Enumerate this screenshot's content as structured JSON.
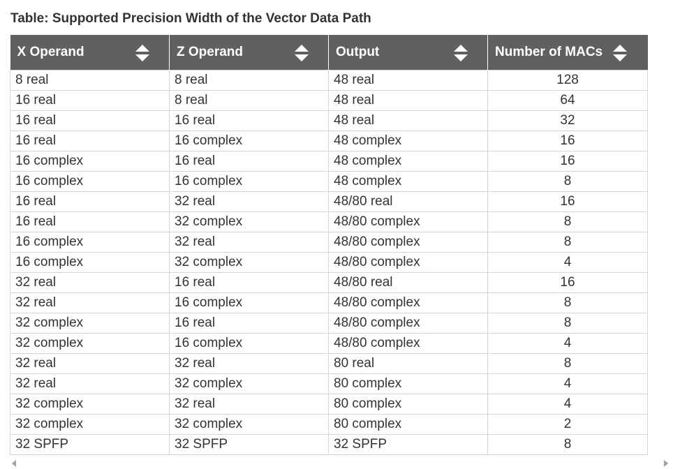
{
  "caption": "Table: Supported Precision Width of the Vector Data Path",
  "table": {
    "headers": [
      "X Operand",
      "Z Operand",
      "Output",
      "Number of MACs"
    ],
    "sort_icon": "sort-up-down-icon",
    "rows": [
      [
        "8 real",
        "8 real",
        "48 real",
        "128"
      ],
      [
        "16 real",
        "8 real",
        "48 real",
        "64"
      ],
      [
        "16 real",
        "16 real",
        "48 real",
        "32"
      ],
      [
        "16 real",
        "16 complex",
        "48 complex",
        "16"
      ],
      [
        "16 complex",
        "16 real",
        "48 complex",
        "16"
      ],
      [
        "16 complex",
        "16 complex",
        "48 complex",
        "8"
      ],
      [
        "16 real",
        "32 real",
        "48/80 real",
        "16"
      ],
      [
        "16 real",
        "32 complex",
        "48/80 complex",
        "8"
      ],
      [
        "16 complex",
        "32 real",
        "48/80 complex",
        "8"
      ],
      [
        "16 complex",
        "32 complex",
        "48/80 complex",
        "4"
      ],
      [
        "32 real",
        "16 real",
        "48/80 real",
        "16"
      ],
      [
        "32 real",
        "16 complex",
        "48/80 complex",
        "8"
      ],
      [
        "32 complex",
        "16 real",
        "48/80 complex",
        "8"
      ],
      [
        "32 complex",
        "16 complex",
        "48/80 complex",
        "4"
      ],
      [
        "32 real",
        "32 real",
        "80 real",
        "8"
      ],
      [
        "32 real",
        "32 complex",
        "80 complex",
        "4"
      ],
      [
        "32 complex",
        "32 real",
        "80 complex",
        "4"
      ],
      [
        "32 complex",
        "32 complex",
        "80 complex",
        "2"
      ],
      [
        "32 SPFP",
        "32 SPFP",
        "32 SPFP",
        "8"
      ]
    ]
  },
  "colors": {
    "header_bg": "#606060",
    "border": "#d6d6d6",
    "text": "#333333"
  }
}
